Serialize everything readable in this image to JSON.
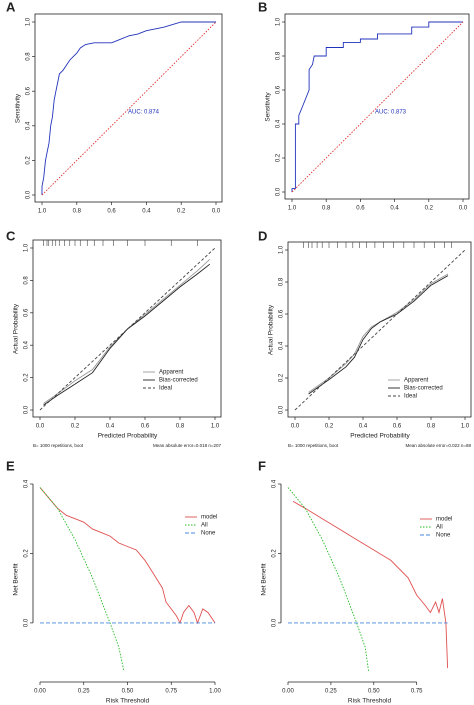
{
  "chart_data": [
    {
      "type": "line",
      "panel": "A",
      "ylabel": "Sensitivity",
      "annotation": "AUC: 0.874",
      "box": true,
      "xlim": [
        1.0,
        0.0
      ],
      "xticks": [
        {
          "value": 1.0,
          "label": "1.0"
        },
        0.8,
        0.6,
        0.4,
        0.2,
        {
          "value": 0.0,
          "label": "0.0"
        }
      ],
      "ylim": [
        0.0,
        1.0
      ],
      "yticks": [
        {
          "value": 0.0,
          "label": "0.0"
        },
        0.2,
        0.4,
        0.6,
        0.8,
        {
          "value": 1.0,
          "label": "1.0"
        }
      ],
      "series": [
        {
          "color": "#2233bb",
          "x": [
            1,
            1,
            0.99,
            0.98,
            0.97,
            0.96,
            0.95,
            0.94,
            0.93,
            0.92,
            0.91,
            0.9,
            0.88,
            0.86,
            0.84,
            0.82,
            0.8,
            0.78,
            0.75,
            0.7,
            0.6,
            0.55,
            0.5,
            0.45,
            0.4,
            0.3,
            0.2,
            0.0
          ],
          "y": [
            0,
            0.05,
            0.1,
            0.2,
            0.25,
            0.3,
            0.4,
            0.45,
            0.55,
            0.6,
            0.65,
            0.7,
            0.72,
            0.75,
            0.78,
            0.8,
            0.82,
            0.85,
            0.87,
            0.88,
            0.88,
            0.9,
            0.92,
            0.93,
            0.95,
            0.97,
            1.0,
            1.0
          ]
        },
        {
          "color": "#e03030",
          "dash": "1.5,1.5",
          "x": [
            1,
            0
          ],
          "y": [
            0,
            1
          ]
        }
      ]
    },
    {
      "type": "line",
      "panel": "B",
      "ylabel": "Sensitivity",
      "annotation": "AUC: 0.873",
      "box": true,
      "xlim": [
        1.0,
        0.0
      ],
      "xticks": [
        {
          "value": 1.0,
          "label": "1.0"
        },
        0.8,
        0.6,
        0.4,
        0.2,
        {
          "value": 0.0,
          "label": "0.0"
        }
      ],
      "ylim": [
        0.0,
        1.0
      ],
      "yticks": [
        {
          "value": 0.0,
          "label": "0.0"
        },
        0.2,
        0.4,
        0.6,
        0.8,
        {
          "value": 1.0,
          "label": "1.0"
        }
      ],
      "series": [
        {
          "color": "#2233bb",
          "x": [
            1,
            1,
            0.98,
            0.98,
            0.96,
            0.96,
            0.94,
            0.92,
            0.9,
            0.9,
            0.88,
            0.87,
            0.8,
            0.8,
            0.7,
            0.7,
            0.6,
            0.6,
            0.5,
            0.5,
            0.3,
            0.3,
            0.2,
            0.2,
            0.0
          ],
          "y": [
            0,
            0.02,
            0.02,
            0.4,
            0.4,
            0.45,
            0.5,
            0.55,
            0.6,
            0.72,
            0.75,
            0.8,
            0.8,
            0.85,
            0.85,
            0.88,
            0.88,
            0.9,
            0.9,
            0.93,
            0.93,
            0.97,
            0.97,
            1.0,
            1.0
          ]
        },
        {
          "color": "#e03030",
          "dash": "1.5,1.5",
          "x": [
            1,
            0
          ],
          "y": [
            0,
            1
          ]
        }
      ]
    },
    {
      "type": "line",
      "panel": "C",
      "xlabel": "Predicted Probability",
      "ylabel": "Actual Probability",
      "box": true,
      "footnote_left": "B= 1000 repetitions, boot",
      "footnote_right": "Mean absolute error=0.018 n=207",
      "xlim": [
        0.0,
        1.0
      ],
      "xticks": [
        {
          "value": 0.0,
          "label": "0.0"
        },
        0.2,
        0.4,
        0.6,
        0.8,
        {
          "value": 1.0,
          "label": "1.0"
        }
      ],
      "ylim": [
        0.0,
        1.0
      ],
      "yticks": [
        {
          "value": 0.0,
          "label": "0.0"
        },
        0.2,
        0.4,
        0.6,
        0.8,
        {
          "value": 1.0,
          "label": "1.0"
        }
      ],
      "rug": [
        0.02,
        0.04,
        0.05,
        0.07,
        0.09,
        0.11,
        0.14,
        0.17,
        0.2,
        0.23,
        0.27,
        0.31,
        0.36,
        0.42,
        0.5,
        0.6,
        0.75,
        0.9
      ],
      "series": [
        {
          "name": "Apparent",
          "color": "#999999",
          "x": [
            0.02,
            0.1,
            0.2,
            0.3,
            0.4,
            0.5,
            0.6,
            0.7,
            0.8,
            0.9,
            0.97
          ],
          "y": [
            0.04,
            0.1,
            0.18,
            0.25,
            0.39,
            0.5,
            0.59,
            0.68,
            0.77,
            0.86,
            0.93
          ]
        },
        {
          "name": "Bias-corrected",
          "color": "#222222",
          "x": [
            0.02,
            0.1,
            0.2,
            0.3,
            0.4,
            0.5,
            0.6,
            0.7,
            0.8,
            0.9,
            0.97
          ],
          "y": [
            0.03,
            0.09,
            0.16,
            0.23,
            0.38,
            0.5,
            0.58,
            0.67,
            0.76,
            0.84,
            0.9
          ]
        },
        {
          "name": "Ideal",
          "color": "#444444",
          "dash": "3,2",
          "x": [
            0,
            1
          ],
          "y": [
            0,
            1
          ]
        }
      ]
    },
    {
      "type": "line",
      "panel": "D",
      "xlabel": "Predicted Probability",
      "ylabel": "Actual Probability",
      "box": true,
      "footnote_left": "B= 1000 repetitions, boot",
      "footnote_right": "Mean absolute error=0.022 n=88",
      "xlim": [
        0.0,
        1.0
      ],
      "xticks": [
        {
          "value": 0.0,
          "label": "0.0"
        },
        0.2,
        0.4,
        0.6,
        0.8,
        {
          "value": 1.0,
          "label": "1.0"
        }
      ],
      "ylim": [
        0.0,
        1.0
      ],
      "yticks": [
        {
          "value": 0.0,
          "label": "0.0"
        },
        0.2,
        0.4,
        0.6,
        0.8,
        {
          "value": 1.0,
          "label": "1.0"
        }
      ],
      "rug": [
        0.05,
        0.08,
        0.1,
        0.13,
        0.16,
        0.2,
        0.25,
        0.3,
        0.34,
        0.38,
        0.42,
        0.47,
        0.52,
        0.58,
        0.64,
        0.7,
        0.76,
        0.82,
        0.88,
        0.92
      ],
      "series": [
        {
          "name": "Apparent",
          "color": "#999999",
          "x": [
            0.08,
            0.2,
            0.3,
            0.35,
            0.4,
            0.45,
            0.5,
            0.6,
            0.7,
            0.8,
            0.9
          ],
          "y": [
            0.11,
            0.2,
            0.29,
            0.35,
            0.46,
            0.52,
            0.55,
            0.61,
            0.69,
            0.79,
            0.85
          ]
        },
        {
          "name": "Bias-corrected",
          "color": "#222222",
          "x": [
            0.08,
            0.2,
            0.3,
            0.35,
            0.4,
            0.45,
            0.5,
            0.6,
            0.7,
            0.8,
            0.9
          ],
          "y": [
            0.1,
            0.19,
            0.27,
            0.33,
            0.44,
            0.51,
            0.55,
            0.6,
            0.68,
            0.78,
            0.84
          ]
        },
        {
          "name": "Ideal",
          "color": "#444444",
          "dash": "3,2",
          "x": [
            0,
            1
          ],
          "y": [
            0,
            1
          ]
        }
      ]
    },
    {
      "type": "line",
      "panel": "E",
      "xlabel": "Risk Threshold",
      "ylabel": "Net Benefit",
      "box": false,
      "xlim": [
        0.0,
        1.0
      ],
      "xticks": [
        {
          "value": 0.0,
          "label": "0.00"
        },
        0.25,
        {
          "value": 0.5,
          "label": "0.50"
        },
        0.75,
        {
          "value": 1.0,
          "label": "1.00"
        }
      ],
      "ylim": [
        -0.15,
        0.4
      ],
      "yticks": [
        {
          "value": 0.0,
          "label": "0.0"
        },
        0.2,
        0.4
      ],
      "series": [
        {
          "name": "model",
          "color": "#e05050",
          "x": [
            0,
            0.05,
            0.1,
            0.15,
            0.2,
            0.25,
            0.3,
            0.35,
            0.4,
            0.45,
            0.5,
            0.55,
            0.6,
            0.65,
            0.7,
            0.72,
            0.75,
            0.78,
            0.8,
            0.82,
            0.85,
            0.88,
            0.9,
            0.93,
            0.96,
            1.0
          ],
          "y": [
            0.39,
            0.36,
            0.33,
            0.31,
            0.3,
            0.29,
            0.27,
            0.26,
            0.25,
            0.23,
            0.22,
            0.21,
            0.18,
            0.14,
            0.1,
            0.06,
            0.04,
            0.02,
            0.0,
            0.03,
            0.05,
            0.03,
            0.0,
            0.04,
            0.03,
            0.0
          ]
        },
        {
          "name": "All",
          "color": "#22bb22",
          "dash": "1.5,1.5",
          "x": [
            0,
            0.1,
            0.2,
            0.3,
            0.4,
            0.45,
            0.48
          ],
          "y": [
            0.39,
            0.33,
            0.24,
            0.13,
            0.0,
            -0.07,
            -0.14
          ]
        },
        {
          "name": "None",
          "color": "#4488dd",
          "dash": "4,2",
          "x": [
            0,
            1
          ],
          "y": [
            0,
            0
          ]
        }
      ]
    },
    {
      "type": "line",
      "panel": "F",
      "xlabel": "Risk Threshold",
      "ylabel": "Net Benefit",
      "box": false,
      "xlim": [
        0.0,
        0.95
      ],
      "xticks": [
        {
          "value": 0.0,
          "label": "0.00"
        },
        0.25,
        {
          "value": 0.5,
          "label": "0.50"
        },
        0.75
      ],
      "ylim": [
        -0.15,
        0.4
      ],
      "yticks": [
        {
          "value": 0.0,
          "label": "0.0"
        },
        0.2,
        0.4
      ],
      "series": [
        {
          "name": "model",
          "color": "#e05050",
          "x": [
            0.03,
            0.1,
            0.2,
            0.3,
            0.4,
            0.5,
            0.6,
            0.7,
            0.75,
            0.8,
            0.83,
            0.86,
            0.88,
            0.9,
            0.92,
            0.93
          ],
          "y": [
            0.35,
            0.33,
            0.3,
            0.27,
            0.24,
            0.21,
            0.18,
            0.13,
            0.08,
            0.05,
            0.03,
            0.06,
            0.03,
            0.07,
            0.0,
            -0.13
          ]
        },
        {
          "name": "All",
          "color": "#22bb22",
          "dash": "1.5,1.5",
          "x": [
            0,
            0.1,
            0.2,
            0.3,
            0.4,
            0.45,
            0.47
          ],
          "y": [
            0.39,
            0.33,
            0.24,
            0.13,
            0.0,
            -0.07,
            -0.14
          ]
        },
        {
          "name": "None",
          "color": "#4488dd",
          "dash": "4,2",
          "x": [
            0,
            0.93
          ],
          "y": [
            0,
            0
          ]
        }
      ]
    }
  ]
}
